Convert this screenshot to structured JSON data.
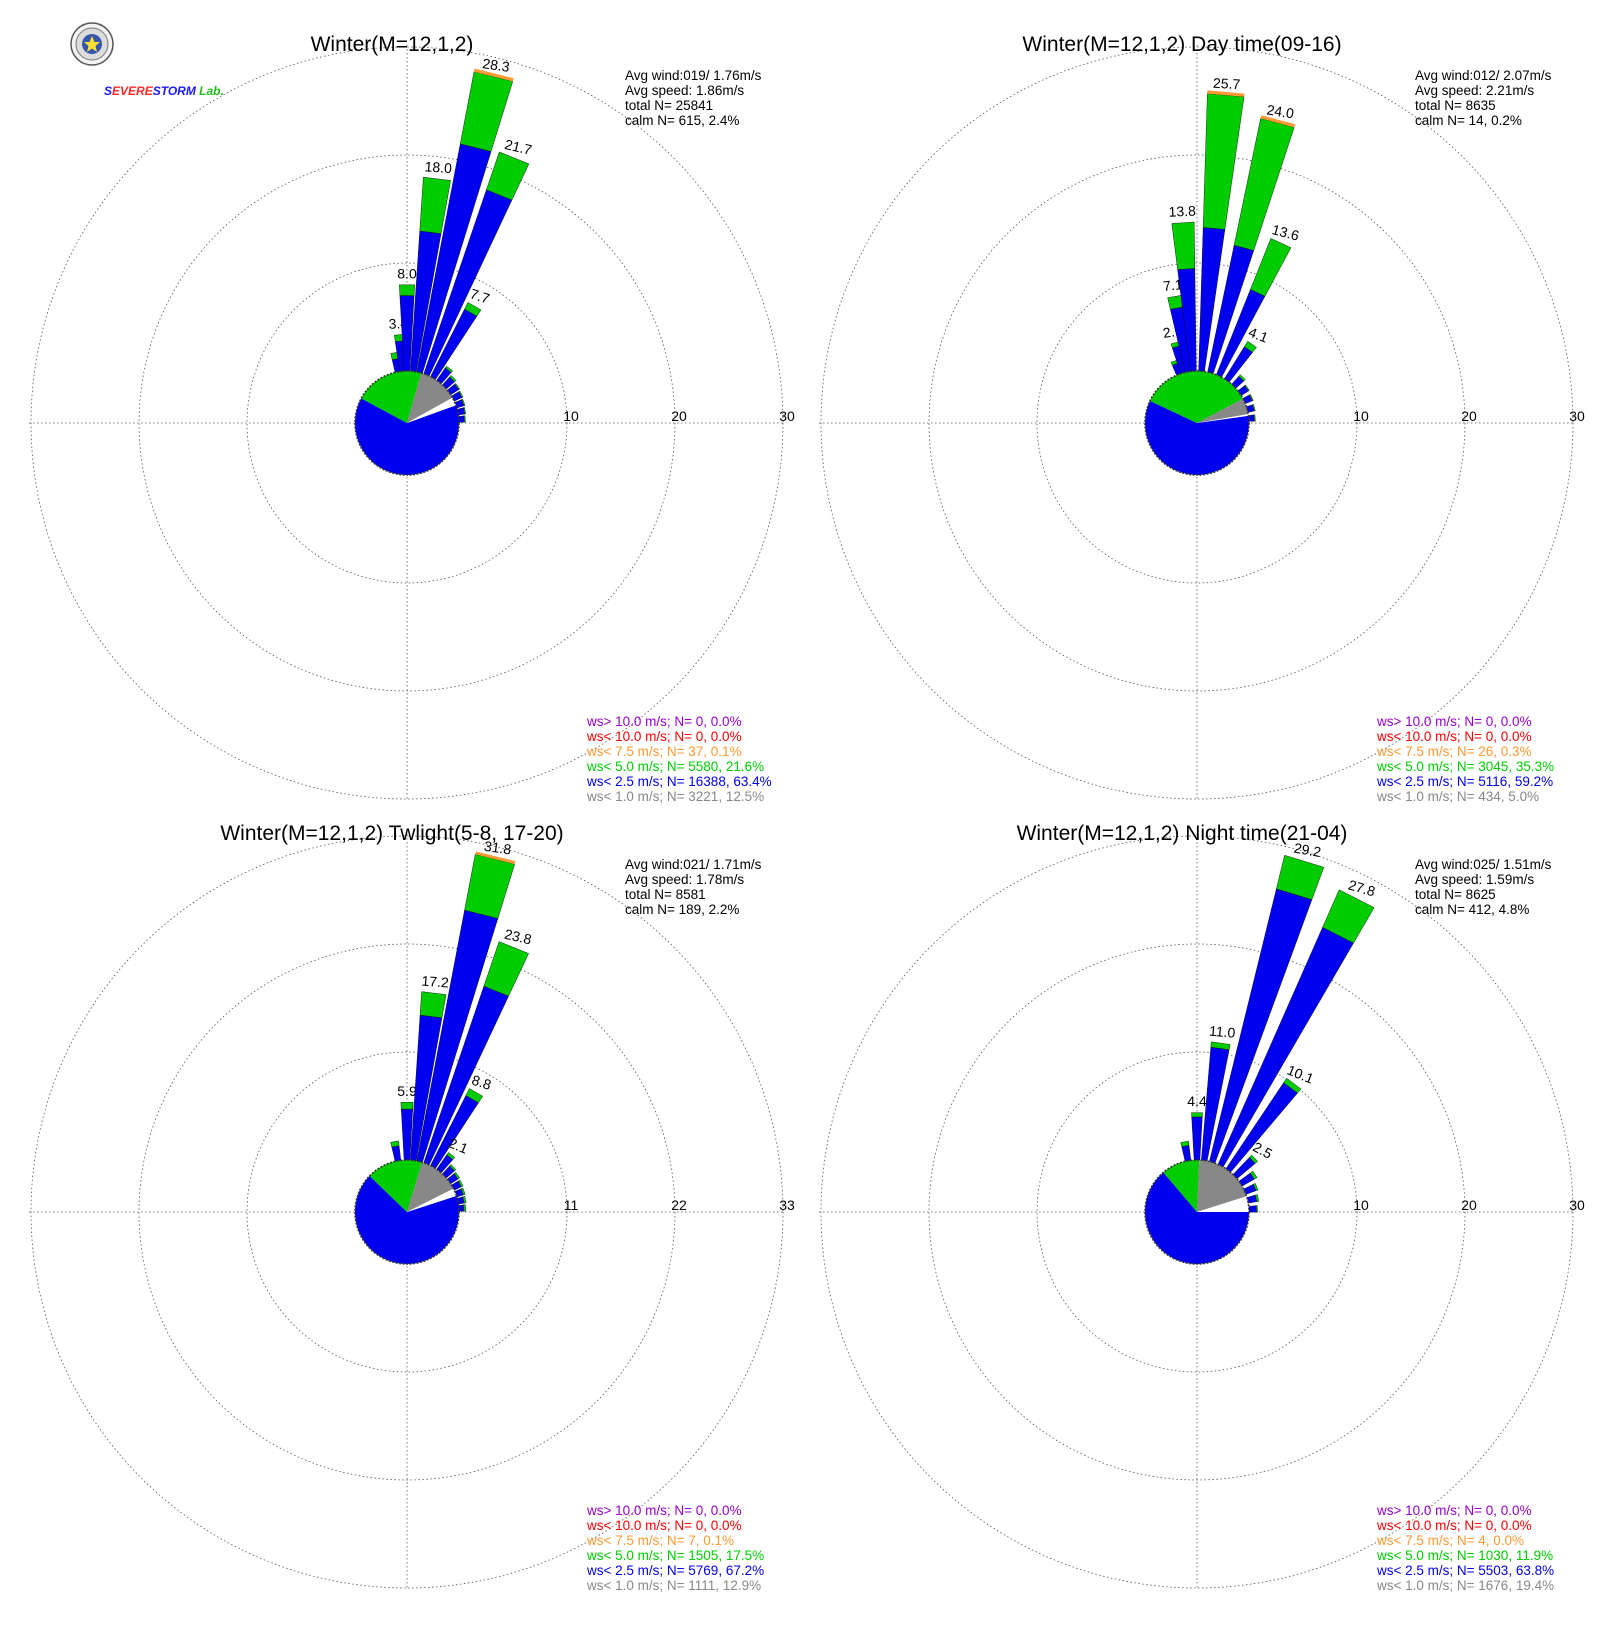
{
  "logo": {
    "brand_parts": [
      "S",
      "EVERE",
      "STORM",
      " Lab."
    ]
  },
  "legend_colors": {
    "ws_gt_10": "#9900cc",
    "ws_lt_10": "#ff0000",
    "ws_lt_7_5": "#ff9933",
    "ws_lt_5": "#00cc00",
    "ws_lt_2_5": "#0000ee",
    "ws_lt_1": "#888888"
  },
  "chart_data": [
    {
      "type": "polar-bar",
      "title": "Winter(M=12,1,2)",
      "rings": [
        "10",
        "20",
        "30"
      ],
      "rmax": 30,
      "stats": [
        "Avg wind:019/ 1.76m/s",
        "Avg speed: 1.86m/s",
        "total N=      25841",
        "calm N=    615,   2.4%"
      ],
      "legend": [
        {
          "text": "ws> 10.0 m/s; N=      0,  0.0%",
          "color": "#9900cc"
        },
        {
          "text": "ws< 10.0 m/s; N=      0,  0.0%",
          "color": "#ff0000"
        },
        {
          "text": "ws<  7.5 m/s; N=     37,  0.1%",
          "color": "#ff9933"
        },
        {
          "text": "ws<  5.0 m/s; N=  5580, 21.6%",
          "color": "#00cc00"
        },
        {
          "text": "ws<  2.5 m/s; N= 16388, 63.4%",
          "color": "#0000ee"
        },
        {
          "text": "ws<  1.0 m/s; N=  3221, 12.5%",
          "color": "#888888"
        }
      ],
      "bars": [
        {
          "dir": 350,
          "total": 1.8,
          "blue": 1.2
        },
        {
          "dir": 355,
          "total": 3.4,
          "blue": 2.8,
          "label": "3.4"
        },
        {
          "dir": 0,
          "total": 8.0,
          "blue": 7.0,
          "label": "8.0"
        },
        {
          "dir": 7,
          "total": 18.0,
          "blue": 13.0,
          "label": "18.0"
        },
        {
          "dir": 14,
          "total": 28.3,
          "blue": 21.5,
          "orange": 0.3,
          "label": "28.3"
        },
        {
          "dir": 22,
          "total": 21.7,
          "blue": 18.0,
          "label": "21.7"
        },
        {
          "dir": 30,
          "total": 7.7,
          "blue": 7.0,
          "label": "7.7"
        },
        {
          "dir": 38,
          "total": 1.6,
          "blue": 1.4
        },
        {
          "dir": 46,
          "total": 1.2,
          "blue": 1.0
        },
        {
          "dir": 54,
          "total": 1.0,
          "blue": 0.9
        },
        {
          "dir": 62,
          "total": 0.9,
          "blue": 0.8
        },
        {
          "dir": 70,
          "total": 0.8,
          "blue": 0.7
        },
        {
          "dir": 78,
          "total": 0.7,
          "blue": 0.6
        },
        {
          "dir": 86,
          "total": 0.6,
          "blue": 0.5
        }
      ],
      "calm_pie": [
        {
          "value": 63.4,
          "color": "#0000ee"
        },
        {
          "value": 21.6,
          "color": "#00cc00"
        },
        {
          "value": 12.5,
          "color": "#888888"
        },
        {
          "value": 2.5,
          "color": "#ffffff"
        }
      ],
      "calm_pie_start": 70
    },
    {
      "type": "polar-bar",
      "title": "Winter(M=12,1,2) Day time(09-16)",
      "rings": [
        "10",
        "20",
        "30"
      ],
      "rmax": 30,
      "stats": [
        "Avg wind:012/ 2.07m/s",
        "Avg speed: 2.21m/s",
        "total N=       8635",
        "calm N=     14,   0.2%"
      ],
      "legend": [
        {
          "text": "ws> 10.0 m/s; N=      0,  0.0%",
          "color": "#9900cc"
        },
        {
          "text": "ws< 10.0 m/s; N=      0,  0.0%",
          "color": "#ff0000"
        },
        {
          "text": "ws<  7.5 m/s; N=     26,  0.3%",
          "color": "#ff9933"
        },
        {
          "text": "ws<  5.0 m/s; N=  3045, 35.3%",
          "color": "#00cc00"
        },
        {
          "text": "ws<  2.5 m/s; N=  5116, 59.2%",
          "color": "#0000ee"
        },
        {
          "text": "ws<  1.0 m/s; N=   434,  5.0%",
          "color": "#888888"
        }
      ],
      "bars": [
        {
          "dir": 340,
          "total": 1.3,
          "blue": 1.0
        },
        {
          "dir": 345,
          "total": 2.9,
          "blue": 2.5,
          "label": "2.9"
        },
        {
          "dir": 350,
          "total": 7.1,
          "blue": 6.0,
          "label": "7.1"
        },
        {
          "dir": 356,
          "total": 13.8,
          "blue": 9.5,
          "label": "13.8"
        },
        {
          "dir": 5,
          "total": 25.7,
          "blue": 13.3,
          "orange": 0.3,
          "label": "25.7"
        },
        {
          "dir": 15,
          "total": 24.0,
          "blue": 12.0,
          "orange": 0.3,
          "label": "24.0"
        },
        {
          "dir": 25,
          "total": 13.6,
          "blue": 8.5,
          "label": "13.6"
        },
        {
          "dir": 35,
          "total": 4.1,
          "blue": 3.5,
          "label": "4.1"
        },
        {
          "dir": 45,
          "total": 1.2,
          "blue": 1.0
        },
        {
          "dir": 55,
          "total": 0.9,
          "blue": 0.8
        },
        {
          "dir": 65,
          "total": 0.8,
          "blue": 0.7
        },
        {
          "dir": 75,
          "total": 0.7,
          "blue": 0.6
        },
        {
          "dir": 85,
          "total": 0.6,
          "blue": 0.5
        }
      ],
      "calm_pie": [
        {
          "value": 59.2,
          "color": "#0000ee"
        },
        {
          "value": 35.3,
          "color": "#00cc00"
        },
        {
          "value": 5.0,
          "color": "#888888"
        },
        {
          "value": 0.5,
          "color": "#ffffff"
        }
      ],
      "calm_pie_start": 82
    },
    {
      "type": "polar-bar",
      "title": "Winter(M=12,1,2) Twlight(5-8, 17-20)",
      "rings": [
        "11",
        "22",
        "33"
      ],
      "rmax": 33,
      "stats": [
        "Avg wind:021/ 1.71m/s",
        "Avg speed: 1.78m/s",
        "total N=       8581",
        "calm N=    189,   2.2%"
      ],
      "legend": [
        {
          "text": "ws> 10.0 m/s; N=      0,  0.0%",
          "color": "#9900cc"
        },
        {
          "text": "ws< 10.0 m/s; N=      0,  0.0%",
          "color": "#ff0000"
        },
        {
          "text": "ws<  7.5 m/s; N=      7,  0.1%",
          "color": "#ff9933"
        },
        {
          "text": "ws<  5.0 m/s; N=  1505, 17.5%",
          "color": "#00cc00"
        },
        {
          "text": "ws<  2.5 m/s; N=  5769, 67.2%",
          "color": "#0000ee"
        },
        {
          "text": "ws<  1.0 m/s; N=  1111, 12.9%",
          "color": "#888888"
        }
      ],
      "bars": [
        {
          "dir": 350,
          "total": 2.0,
          "blue": 1.5
        },
        {
          "dir": 0,
          "total": 5.9,
          "blue": 5.2,
          "label": "5.9"
        },
        {
          "dir": 7,
          "total": 17.2,
          "blue": 14.8,
          "label": "17.2"
        },
        {
          "dir": 14,
          "total": 31.8,
          "blue": 26.0,
          "orange": 0.3,
          "label": "31.8"
        },
        {
          "dir": 22,
          "total": 23.8,
          "blue": 19.0,
          "label": "23.8"
        },
        {
          "dir": 30,
          "total": 8.8,
          "blue": 8.0,
          "label": "8.8"
        },
        {
          "dir": 38,
          "total": 2.1,
          "blue": 1.8,
          "label": "2.1"
        },
        {
          "dir": 46,
          "total": 1.3,
          "blue": 1.1
        },
        {
          "dir": 54,
          "total": 1.1,
          "blue": 0.9
        },
        {
          "dir": 62,
          "total": 1.0,
          "blue": 0.8
        },
        {
          "dir": 70,
          "total": 0.9,
          "blue": 0.7
        },
        {
          "dir": 78,
          "total": 0.8,
          "blue": 0.6
        },
        {
          "dir": 86,
          "total": 0.7,
          "blue": 0.5
        }
      ],
      "calm_pie": [
        {
          "value": 67.2,
          "color": "#0000ee"
        },
        {
          "value": 17.5,
          "color": "#00cc00"
        },
        {
          "value": 12.9,
          "color": "#888888"
        },
        {
          "value": 2.4,
          "color": "#ffffff"
        }
      ],
      "calm_pie_start": 72
    },
    {
      "type": "polar-bar",
      "title": "Winter(M=12,1,2) Night time(21-04)",
      "rings": [
        "10",
        "20",
        "30"
      ],
      "rmax": 30,
      "stats": [
        "Avg wind:025/ 1.51m/s",
        "Avg speed: 1.59m/s",
        "total N=       8625",
        "calm N=    412,   4.8%"
      ],
      "legend": [
        {
          "text": "ws> 10.0 m/s; N=      0,  0.0%",
          "color": "#9900cc"
        },
        {
          "text": "ws< 10.0 m/s; N=      0,  0.0%",
          "color": "#ff0000"
        },
        {
          "text": "ws<  7.5 m/s; N=      4,  0.0%",
          "color": "#ff9933"
        },
        {
          "text": "ws<  5.0 m/s; N=  1030, 11.9%",
          "color": "#00cc00"
        },
        {
          "text": "ws<  2.5 m/s; N=  5503, 63.8%",
          "color": "#0000ee"
        },
        {
          "text": "ws<  1.0 m/s; N=  1676, 19.4%",
          "color": "#888888"
        }
      ],
      "bars": [
        {
          "dir": 350,
          "total": 1.8,
          "blue": 1.4
        },
        {
          "dir": 0,
          "total": 4.4,
          "blue": 4.0,
          "label": "4.4"
        },
        {
          "dir": 8,
          "total": 11.0,
          "blue": 10.5,
          "label": "11.0"
        },
        {
          "dir": 17,
          "total": 29.2,
          "blue": 26.0,
          "label": "29.2"
        },
        {
          "dir": 27,
          "total": 27.8,
          "blue": 24.0,
          "label": "27.8"
        },
        {
          "dir": 37,
          "total": 10.1,
          "blue": 9.6,
          "label": "10.1"
        },
        {
          "dir": 47,
          "total": 2.5,
          "blue": 2.2,
          "label": "2.5"
        },
        {
          "dir": 57,
          "total": 1.6,
          "blue": 1.3
        },
        {
          "dir": 67,
          "total": 1.2,
          "blue": 1.0
        },
        {
          "dir": 77,
          "total": 1.0,
          "blue": 0.8
        },
        {
          "dir": 87,
          "total": 0.8,
          "blue": 0.7
        }
      ],
      "calm_pie": [
        {
          "value": 63.8,
          "color": "#0000ee"
        },
        {
          "value": 11.9,
          "color": "#00cc00"
        },
        {
          "value": 19.4,
          "color": "#888888"
        },
        {
          "value": 4.9,
          "color": "#ffffff"
        }
      ],
      "calm_pie_start": 90
    }
  ]
}
